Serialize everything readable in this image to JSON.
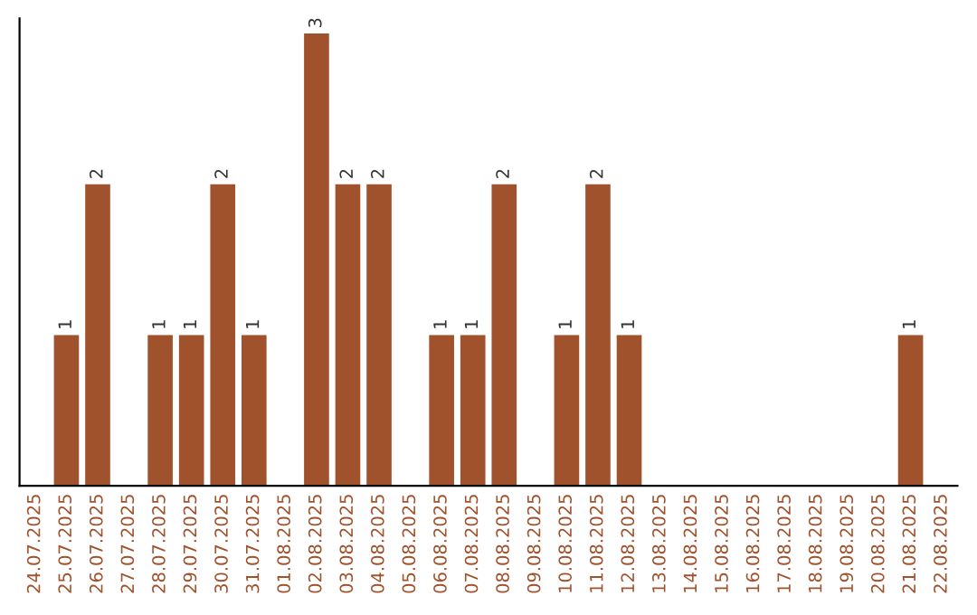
{
  "chart_data": {
    "type": "bar",
    "categories": [
      "24.07.2025",
      "25.07.2025",
      "26.07.2025",
      "27.07.2025",
      "28.07.2025",
      "29.07.2025",
      "30.07.2025",
      "31.07.2025",
      "01.08.2025",
      "02.08.2025",
      "03.08.2025",
      "04.08.2025",
      "05.08.2025",
      "06.08.2025",
      "07.08.2025",
      "08.08.2025",
      "09.08.2025",
      "10.08.2025",
      "11.08.2025",
      "12.08.2025",
      "13.08.2025",
      "14.08.2025",
      "15.08.2025",
      "16.08.2025",
      "17.08.2025",
      "18.08.2025",
      "19.08.2025",
      "20.08.2025",
      "21.08.2025",
      "22.08.2025"
    ],
    "values": [
      0,
      1,
      2,
      0,
      1,
      1,
      2,
      1,
      0,
      3,
      2,
      2,
      0,
      1,
      1,
      2,
      0,
      1,
      2,
      1,
      0,
      0,
      0,
      0,
      0,
      0,
      0,
      0,
      1,
      0
    ],
    "value_labels": [
      null,
      "1",
      "2",
      null,
      "1",
      "1",
      "2",
      "1",
      null,
      "3",
      "2",
      "2",
      null,
      "1",
      "1",
      "2",
      null,
      "1",
      "2",
      "1",
      null,
      null,
      null,
      null,
      null,
      null,
      null,
      null,
      "1",
      null
    ],
    "color": "#a0522d",
    "ylim": [
      0,
      3.1
    ],
    "tick_labels": "x",
    "grid": false,
    "legend": false
  }
}
